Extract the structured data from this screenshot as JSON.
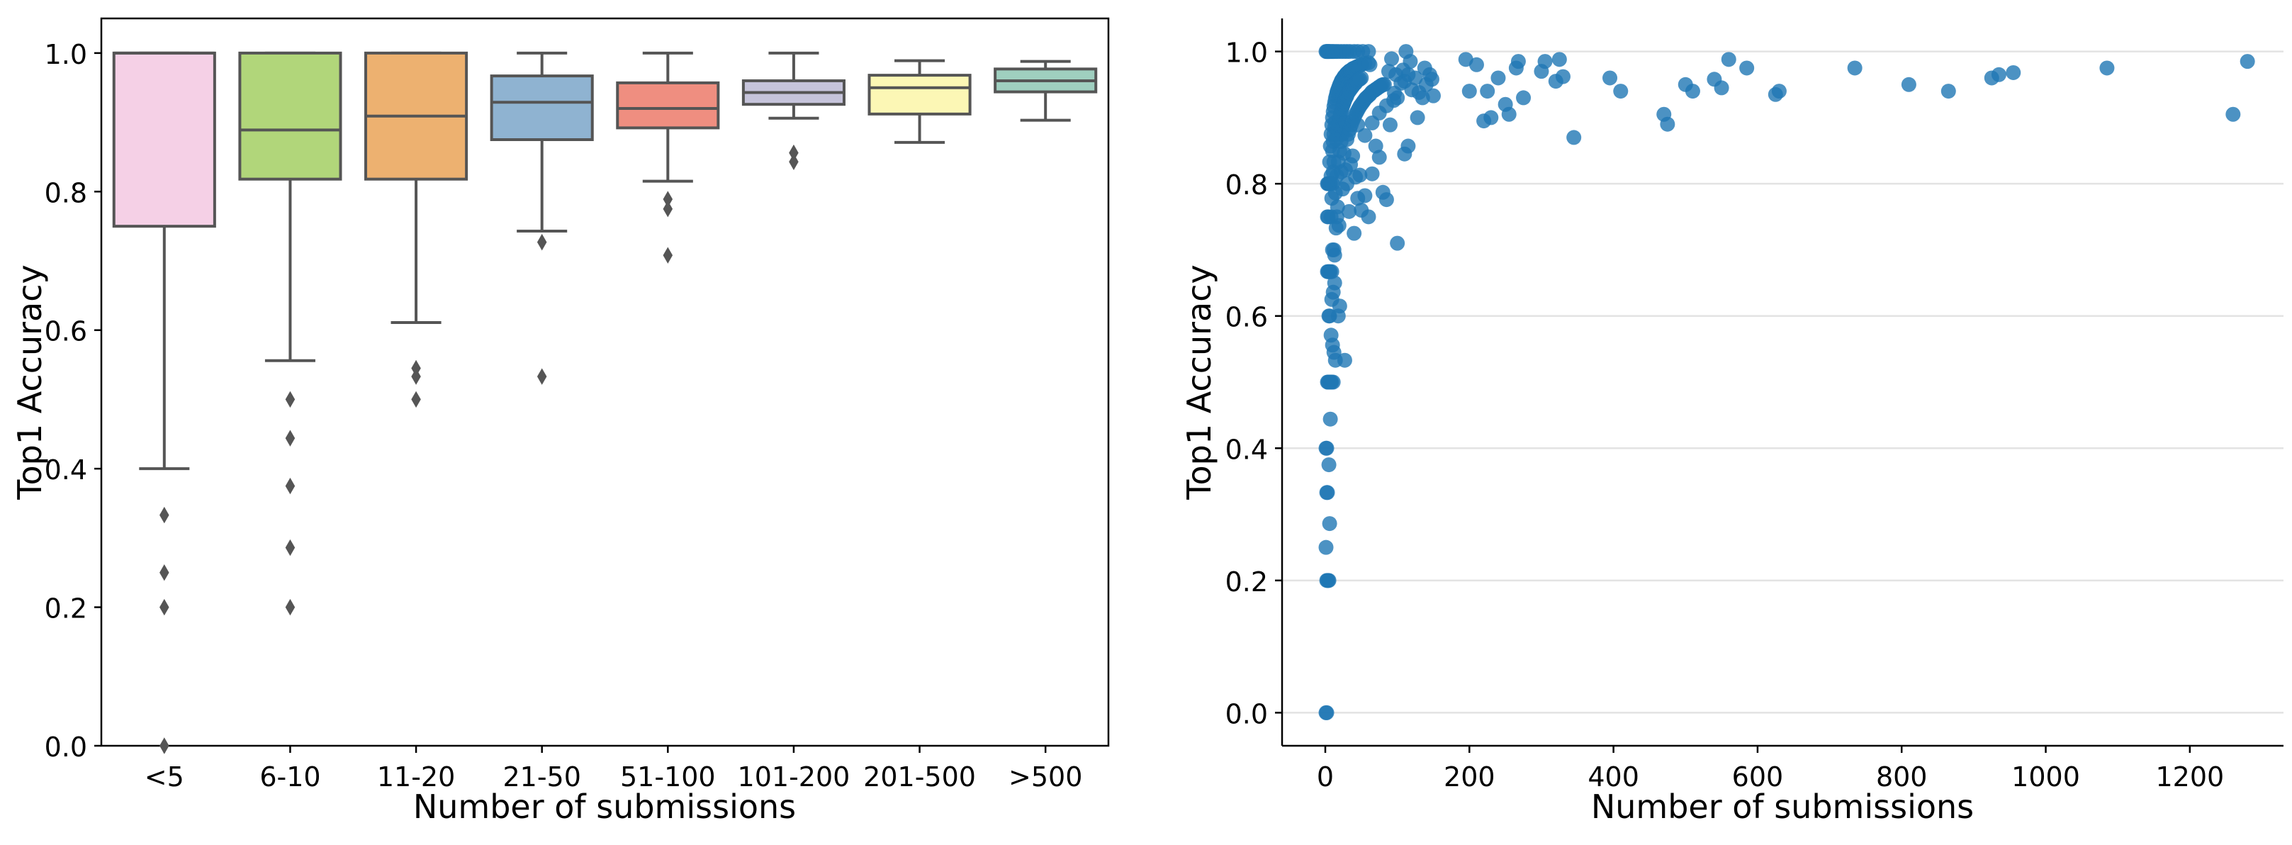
{
  "chart_data": [
    {
      "type": "box",
      "xlabel": "Number of submissions",
      "ylabel": "Top1 Accuracy",
      "ylim": [
        0,
        1.05
      ],
      "yticks": [
        "0.0",
        "0.2",
        "0.4",
        "0.6",
        "0.8",
        "1.0"
      ],
      "ytick_values": [
        0,
        0.2,
        0.4,
        0.6,
        0.8,
        1.0
      ],
      "grid": false,
      "categories": [
        "<5",
        "6-10",
        "11-20",
        "21-50",
        "51-100",
        "101-200",
        "201-500",
        ">500"
      ],
      "colors": [
        "#f5d0e6",
        "#b1d67a",
        "#edb170",
        "#8fb3d1",
        "#ef8e80",
        "#c6c4db",
        "#fcf7b5",
        "#9fcfbf"
      ],
      "boxes": [
        {
          "category": "<5",
          "whisker_low": 0.4,
          "q1": 0.75,
          "median": 1.0,
          "q3": 1.0,
          "whisker_high": 1.0,
          "outliers": [
            0.333,
            0.25,
            0.2,
            0.0
          ]
        },
        {
          "category": "6-10",
          "whisker_low": 0.556,
          "q1": 0.818,
          "median": 0.889,
          "q3": 1.0,
          "whisker_high": 1.0,
          "outliers": [
            0.5,
            0.444,
            0.375,
            0.286,
            0.2
          ]
        },
        {
          "category": "11-20",
          "whisker_low": 0.611,
          "q1": 0.818,
          "median": 0.909,
          "q3": 1.0,
          "whisker_high": 1.0,
          "outliers": [
            0.545,
            0.533,
            0.5
          ]
        },
        {
          "category": "21-50",
          "whisker_low": 0.743,
          "q1": 0.875,
          "median": 0.929,
          "q3": 0.967,
          "whisker_high": 1.0,
          "outliers": [
            0.727,
            0.533
          ]
        },
        {
          "category": "51-100",
          "whisker_low": 0.815,
          "q1": 0.892,
          "median": 0.92,
          "q3": 0.957,
          "whisker_high": 1.0,
          "outliers": [
            0.789,
            0.775,
            0.708
          ]
        },
        {
          "category": "101-200",
          "whisker_low": 0.906,
          "q1": 0.926,
          "median": 0.943,
          "q3": 0.96,
          "whisker_high": 1.0,
          "outliers": [
            0.856,
            0.843
          ]
        },
        {
          "category": "201-500",
          "whisker_low": 0.871,
          "q1": 0.912,
          "median": 0.95,
          "q3": 0.968,
          "whisker_high": 0.989,
          "outliers": []
        },
        {
          "category": ">500",
          "whisker_low": 0.903,
          "q1": 0.944,
          "median": 0.96,
          "q3": 0.977,
          "whisker_high": 0.988,
          "outliers": []
        }
      ]
    },
    {
      "type": "scatter",
      "xlabel": "Number of submissions",
      "ylabel": "Top1 Accuracy",
      "xlim": [
        -60,
        1330
      ],
      "ylim": [
        -0.05,
        1.05
      ],
      "xticks": [
        "0",
        "200",
        "400",
        "600",
        "800",
        "1000",
        "1200"
      ],
      "xtick_values": [
        0,
        200,
        400,
        600,
        800,
        1000,
        1200
      ],
      "yticks": [
        "0.0",
        "0.2",
        "0.4",
        "0.6",
        "0.8",
        "1.0"
      ],
      "ytick_values": [
        0,
        0.2,
        0.4,
        0.6,
        0.8,
        1.0
      ],
      "grid": "horizontal",
      "color": "#1f77b4",
      "points": [
        [
          1,
          1.0
        ],
        [
          2,
          1.0
        ],
        [
          3,
          1.0
        ],
        [
          4,
          1.0
        ],
        [
          5,
          1.0
        ],
        [
          6,
          1.0
        ],
        [
          8,
          1.0
        ],
        [
          10,
          1.0
        ],
        [
          12,
          1.0
        ],
        [
          15,
          1.0
        ],
        [
          18,
          1.0
        ],
        [
          22,
          1.0
        ],
        [
          26,
          1.0
        ],
        [
          30,
          1.0
        ],
        [
          34,
          1.0
        ],
        [
          40,
          1.0
        ],
        [
          45,
          1.0
        ],
        [
          52,
          1.0
        ],
        [
          60,
          1.0
        ],
        [
          62,
          0.98
        ],
        [
          1,
          0.0
        ],
        [
          2,
          0.0
        ],
        [
          1,
          0.25
        ],
        [
          2,
          0.2
        ],
        [
          3,
          0.2
        ],
        [
          4,
          0.2
        ],
        [
          5,
          0.2
        ],
        [
          2,
          0.333
        ],
        [
          3,
          0.333
        ],
        [
          6,
          0.286
        ],
        [
          5,
          0.375
        ],
        [
          7,
          0.444
        ],
        [
          1,
          0.4
        ],
        [
          2,
          0.4
        ],
        [
          3,
          0.5
        ],
        [
          4,
          0.5
        ],
        [
          5,
          0.5
        ],
        [
          6,
          0.5
        ],
        [
          7,
          0.5
        ],
        [
          8,
          0.5
        ],
        [
          9,
          0.5
        ],
        [
          11,
          0.5
        ],
        [
          5,
          0.6
        ],
        [
          6,
          0.6
        ],
        [
          8,
          0.571
        ],
        [
          10,
          0.556
        ],
        [
          12,
          0.545
        ],
        [
          14,
          0.533
        ],
        [
          18,
          0.6
        ],
        [
          20,
          0.615
        ],
        [
          27,
          0.533
        ],
        [
          9,
          0.625
        ],
        [
          11,
          0.636
        ],
        [
          13,
          0.65
        ],
        [
          3,
          0.667
        ],
        [
          4,
          0.667
        ],
        [
          5,
          0.667
        ],
        [
          6,
          0.667
        ],
        [
          7,
          0.667
        ],
        [
          9,
          0.667
        ],
        [
          10,
          0.7
        ],
        [
          12,
          0.7
        ],
        [
          13,
          0.692
        ],
        [
          15,
          0.733
        ],
        [
          16,
          0.75
        ],
        [
          17,
          0.765
        ],
        [
          19,
          0.737
        ],
        [
          3,
          0.75
        ],
        [
          4,
          0.75
        ],
        [
          8,
          0.75
        ],
        [
          3,
          0.8
        ],
        [
          4,
          0.8
        ],
        [
          5,
          0.8
        ],
        [
          6,
          0.8
        ],
        [
          7,
          0.8
        ],
        [
          8,
          0.812
        ],
        [
          9,
          0.778
        ],
        [
          10,
          0.8
        ],
        [
          11,
          0.818
        ],
        [
          12,
          0.833
        ],
        [
          14,
          0.786
        ],
        [
          16,
          0.812
        ],
        [
          18,
          0.833
        ],
        [
          20,
          0.85
        ],
        [
          22,
          0.818
        ],
        [
          24,
          0.792
        ],
        [
          26,
          0.846
        ],
        [
          28,
          0.821
        ],
        [
          30,
          0.8
        ],
        [
          35,
          0.829
        ],
        [
          38,
          0.842
        ],
        [
          42,
          0.81
        ],
        [
          45,
          0.778
        ],
        [
          48,
          0.813
        ],
        [
          55,
          0.782
        ],
        [
          65,
          0.815
        ],
        [
          75,
          0.84
        ],
        [
          80,
          0.787
        ],
        [
          85,
          0.776
        ],
        [
          100,
          0.71
        ],
        [
          110,
          0.845
        ],
        [
          115,
          0.857
        ],
        [
          40,
          0.725
        ],
        [
          50,
          0.76
        ],
        [
          60,
          0.75
        ],
        [
          33,
          0.758
        ],
        [
          10,
          0.9
        ],
        [
          11,
          0.909
        ],
        [
          12,
          0.917
        ],
        [
          13,
          0.923
        ],
        [
          14,
          0.929
        ],
        [
          15,
          0.933
        ],
        [
          16,
          0.938
        ],
        [
          17,
          0.941
        ],
        [
          18,
          0.944
        ],
        [
          19,
          0.947
        ],
        [
          20,
          0.95
        ],
        [
          21,
          0.952
        ],
        [
          22,
          0.955
        ],
        [
          23,
          0.957
        ],
        [
          24,
          0.958
        ],
        [
          25,
          0.96
        ],
        [
          26,
          0.962
        ],
        [
          27,
          0.963
        ],
        [
          28,
          0.964
        ],
        [
          29,
          0.966
        ],
        [
          30,
          0.967
        ],
        [
          31,
          0.968
        ],
        [
          32,
          0.969
        ],
        [
          33,
          0.97
        ],
        [
          34,
          0.971
        ],
        [
          35,
          0.971
        ],
        [
          36,
          0.972
        ],
        [
          38,
          0.974
        ],
        [
          40,
          0.975
        ],
        [
          42,
          0.976
        ],
        [
          44,
          0.977
        ],
        [
          46,
          0.978
        ],
        [
          48,
          0.979
        ],
        [
          50,
          0.98
        ],
        [
          55,
          0.982
        ],
        [
          60,
          0.983
        ],
        [
          6,
          0.833
        ],
        [
          7,
          0.857
        ],
        [
          8,
          0.875
        ],
        [
          9,
          0.889
        ],
        [
          10,
          0.85
        ],
        [
          11,
          0.864
        ],
        [
          12,
          0.875
        ],
        [
          13,
          0.885
        ],
        [
          14,
          0.893
        ],
        [
          15,
          0.867
        ],
        [
          16,
          0.875
        ],
        [
          17,
          0.882
        ],
        [
          18,
          0.889
        ],
        [
          19,
          0.895
        ],
        [
          20,
          0.9
        ],
        [
          21,
          0.905
        ],
        [
          22,
          0.909
        ],
        [
          23,
          0.913
        ],
        [
          24,
          0.917
        ],
        [
          25,
          0.92
        ],
        [
          26,
          0.923
        ],
        [
          27,
          0.926
        ],
        [
          28,
          0.929
        ],
        [
          29,
          0.931
        ],
        [
          30,
          0.933
        ],
        [
          32,
          0.938
        ],
        [
          34,
          0.941
        ],
        [
          36,
          0.944
        ],
        [
          38,
          0.947
        ],
        [
          40,
          0.95
        ],
        [
          42,
          0.952
        ],
        [
          44,
          0.955
        ],
        [
          46,
          0.957
        ],
        [
          48,
          0.958
        ],
        [
          50,
          0.96
        ],
        [
          22,
          0.864
        ],
        [
          24,
          0.875
        ],
        [
          26,
          0.885
        ],
        [
          28,
          0.893
        ],
        [
          30,
          0.867
        ],
        [
          32,
          0.875
        ],
        [
          34,
          0.882
        ],
        [
          36,
          0.889
        ],
        [
          38,
          0.895
        ],
        [
          40,
          0.9
        ],
        [
          42,
          0.905
        ],
        [
          44,
          0.909
        ],
        [
          46,
          0.913
        ],
        [
          48,
          0.917
        ],
        [
          50,
          0.92
        ],
        [
          52,
          0.923
        ],
        [
          54,
          0.926
        ],
        [
          56,
          0.929
        ],
        [
          58,
          0.931
        ],
        [
          60,
          0.933
        ],
        [
          62,
          0.935
        ],
        [
          64,
          0.938
        ],
        [
          66,
          0.94
        ],
        [
          68,
          0.941
        ],
        [
          70,
          0.943
        ],
        [
          72,
          0.944
        ],
        [
          74,
          0.946
        ],
        [
          76,
          0.947
        ],
        [
          78,
          0.949
        ],
        [
          80,
          0.95
        ],
        [
          45,
          0.889
        ],
        [
          55,
          0.873
        ],
        [
          65,
          0.892
        ],
        [
          70,
          0.857
        ],
        [
          75,
          0.907
        ],
        [
          85,
          0.918
        ],
        [
          90,
          0.889
        ],
        [
          95,
          0.926
        ],
        [
          100,
          0.93
        ],
        [
          105,
          0.952
        ],
        [
          110,
          0.955
        ],
        [
          115,
          0.965
        ],
        [
          120,
          0.942
        ],
        [
          125,
          0.96
        ],
        [
          130,
          0.938
        ],
        [
          135,
          0.93
        ],
        [
          140,
          0.95
        ],
        [
          145,
          0.965
        ],
        [
          150,
          0.933
        ],
        [
          88,
          0.97
        ],
        [
          92,
          0.989
        ],
        [
          98,
          0.965
        ],
        [
          108,
          0.972
        ],
        [
          118,
          0.985
        ],
        [
          128,
          0.9
        ],
        [
          138,
          0.975
        ],
        [
          148,
          0.958
        ],
        [
          112,
          1.0
        ],
        [
          96,
          0.937
        ],
        [
          82,
          0.95
        ],
        [
          195,
          0.988
        ],
        [
          200,
          0.94
        ],
        [
          210,
          0.98
        ],
        [
          220,
          0.895
        ],
        [
          225,
          0.94
        ],
        [
          230,
          0.9
        ],
        [
          240,
          0.96
        ],
        [
          250,
          0.92
        ],
        [
          255,
          0.905
        ],
        [
          265,
          0.975
        ],
        [
          268,
          0.985
        ],
        [
          275,
          0.93
        ],
        [
          300,
          0.97
        ],
        [
          305,
          0.985
        ],
        [
          320,
          0.955
        ],
        [
          325,
          0.988
        ],
        [
          330,
          0.962
        ],
        [
          345,
          0.87
        ],
        [
          395,
          0.96
        ],
        [
          410,
          0.94
        ],
        [
          470,
          0.905
        ],
        [
          475,
          0.89
        ],
        [
          500,
          0.95
        ],
        [
          510,
          0.94
        ],
        [
          540,
          0.958
        ],
        [
          550,
          0.945
        ],
        [
          560,
          0.988
        ],
        [
          585,
          0.975
        ],
        [
          625,
          0.935
        ],
        [
          630,
          0.94
        ],
        [
          735,
          0.975
        ],
        [
          810,
          0.95
        ],
        [
          865,
          0.94
        ],
        [
          925,
          0.96
        ],
        [
          935,
          0.965
        ],
        [
          955,
          0.968
        ],
        [
          1085,
          0.975
        ],
        [
          1260,
          0.905
        ],
        [
          1280,
          0.985
        ]
      ]
    }
  ]
}
